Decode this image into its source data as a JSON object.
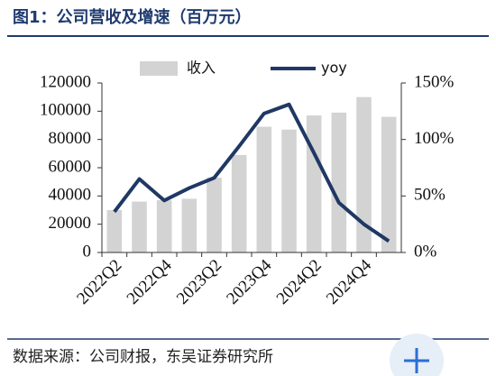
{
  "title": "图1：公司营收及增速（百万元）",
  "source": "数据来源：公司财报，东吴证券研究所",
  "chart_data": {
    "type": "bar_line",
    "categories": [
      "2022Q2",
      null,
      "2022Q4",
      null,
      "2023Q2",
      null,
      "2023Q4",
      null,
      "2024Q2",
      null,
      "2024Q4",
      null
    ],
    "series": [
      {
        "name": "收入",
        "color": "#d3d3d3",
        "type": "bar",
        "values": [
          30000,
          36000,
          37000,
          38000,
          53000,
          69000,
          89000,
          87000,
          97000,
          99000,
          110000,
          96000
        ]
      },
      {
        "name": "yoy",
        "color": "#1f3864",
        "type": "line",
        "axis": "y2",
        "values": [
          36,
          65,
          46,
          57,
          66,
          94,
          123,
          131,
          88,
          44,
          25,
          10
        ]
      }
    ],
    "ylim": [
      0,
      120000
    ],
    "yticks": [
      0,
      20000,
      40000,
      60000,
      80000,
      100000,
      120000
    ],
    "y2lim": [
      0,
      150
    ],
    "y2ticks": [
      {
        "value": 0,
        "label": "0%"
      },
      {
        "value": 50,
        "label": "50%"
      },
      {
        "value": 100,
        "label": "100%"
      },
      {
        "value": 150,
        "label": "150%"
      }
    ],
    "legend": "top"
  }
}
